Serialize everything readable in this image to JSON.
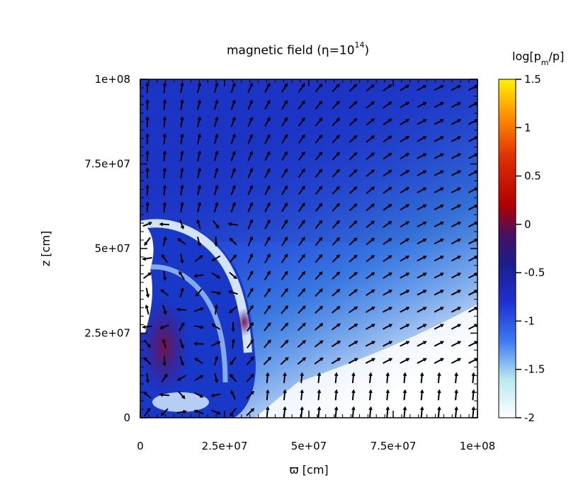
{
  "chart_data": {
    "type": "heatmap",
    "title": {
      "prefix": "magnetic field (η=10",
      "exponent": "14",
      "suffix": ")"
    },
    "xlabel": "ϖ [cm]",
    "ylabel": "z [cm]",
    "xlim": [
      0,
      100000000
    ],
    "ylim": [
      0,
      100000000
    ],
    "x_tick_labels": [
      "0",
      "2.5e+07",
      "5e+07",
      "7.5e+07",
      "1e+08"
    ],
    "y_tick_labels": [
      "0",
      "2.5e+07",
      "5e+07",
      "7.5e+07",
      "1e+08"
    ],
    "colorbar": {
      "label": {
        "prefix": "log[p",
        "sub": "m",
        "suffix": "/p]"
      },
      "range": [
        -2,
        1.5
      ],
      "tick_labels": [
        "1.5",
        "1",
        "0.5",
        "0",
        "-0.5",
        "-1",
        "-1.5",
        "-2"
      ],
      "stops": [
        {
          "value": -2.0,
          "color": "#ffffff"
        },
        {
          "value": -1.6,
          "color": "#b8e8f0"
        },
        {
          "value": -1.2,
          "color": "#3c78f0"
        },
        {
          "value": -0.8,
          "color": "#1e2fd0"
        },
        {
          "value": -0.4,
          "color": "#1a1e8a"
        },
        {
          "value": -0.1,
          "color": "#4a1060"
        },
        {
          "value": 0.2,
          "color": "#b00000"
        },
        {
          "value": 0.7,
          "color": "#e03000"
        },
        {
          "value": 1.1,
          "color": "#ff8a00"
        },
        {
          "value": 1.5,
          "color": "#fff200"
        }
      ]
    },
    "colors": {
      "background_field": "#1e3cd8",
      "upper_field": "#1a2fb8",
      "outflow_region": "#dff3f8",
      "arrow": "#000000"
    },
    "grid": false,
    "legend": "colorbar-right"
  }
}
